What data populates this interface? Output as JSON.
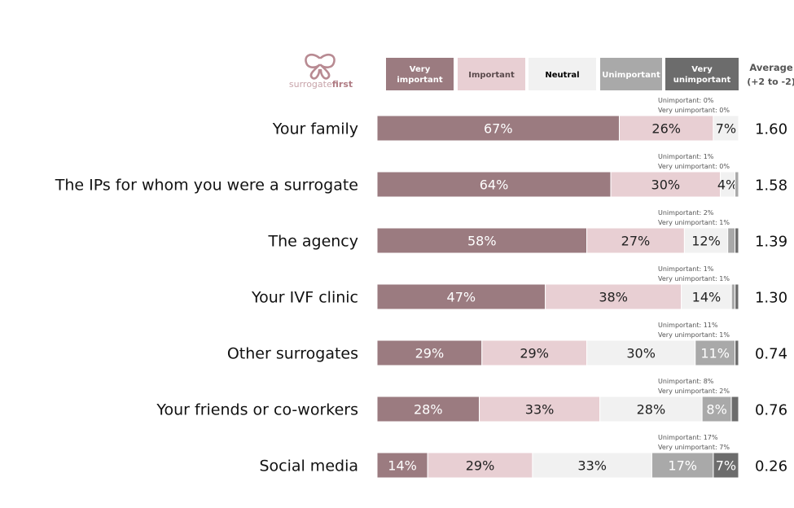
{
  "brand": {
    "name_part1": "surrogate",
    "name_part2": "first",
    "icon": "butterfly-logo-icon"
  },
  "chart_data": {
    "type": "bar",
    "orientation": "horizontal",
    "stacked": true,
    "normalized_100": true,
    "legend": {
      "placement": "top",
      "entries": [
        {
          "line1": "Very",
          "line2": "important",
          "color": "#9b7b80",
          "text_color": "#ffffff"
        },
        {
          "line1": "Important",
          "line2": "",
          "color": "#e8cfd3",
          "text_color": "#5a4a4c"
        },
        {
          "line1": "Neutral",
          "line2": "",
          "color": "#f1f1f1",
          "text_color": "#000000"
        },
        {
          "line1": "Unimportant",
          "line2": "",
          "color": "#a9a9a9",
          "text_color": "#ffffff"
        },
        {
          "line1": "Very",
          "line2": "unimportant",
          "color": "#6c6c6c",
          "text_color": "#ffffff"
        }
      ]
    },
    "average_header": {
      "line1": "Average",
      "line2": "(+2 to -2)"
    },
    "categories": [
      "Your family",
      "The IPs for whom you were a surrogate",
      "The agency",
      "Your IVF clinic",
      "Other surrogates",
      "Your friends or co-workers",
      "Social media"
    ],
    "series": [
      {
        "name": "Very important",
        "values": [
          67,
          64,
          58,
          47,
          29,
          28,
          14
        ]
      },
      {
        "name": "Important",
        "values": [
          26,
          30,
          27,
          38,
          29,
          33,
          29
        ]
      },
      {
        "name": "Neutral",
        "values": [
          7,
          4,
          12,
          14,
          30,
          28,
          33
        ]
      },
      {
        "name": "Unimportant",
        "values": [
          0,
          1,
          2,
          1,
          11,
          8,
          17
        ]
      },
      {
        "name": "Very unimportant",
        "values": [
          0,
          0,
          1,
          1,
          1,
          2,
          7
        ]
      }
    ],
    "segment_labels": [
      [
        "67%",
        "26%",
        "7%",
        "",
        ""
      ],
      [
        "64%",
        "30%",
        "4%",
        "",
        ""
      ],
      [
        "58%",
        "27%",
        "12%",
        "",
        ""
      ],
      [
        "47%",
        "38%",
        "14%",
        "",
        ""
      ],
      [
        "29%",
        "29%",
        "30%",
        "11%",
        ""
      ],
      [
        "28%",
        "33%",
        "28%",
        "8%",
        ""
      ],
      [
        "14%",
        "29%",
        "33%",
        "17%",
        "7%"
      ]
    ],
    "annotations": [
      {
        "unimportant": "Unimportant: 0%",
        "very_unimportant": "Very unimportant: 0%"
      },
      {
        "unimportant": "Unimportant: 1%",
        "very_unimportant": "Very unimportant: 0%"
      },
      {
        "unimportant": "Unimportant: 2%",
        "very_unimportant": "Very unimportant: 1%"
      },
      {
        "unimportant": "Unimportant: 1%",
        "very_unimportant": "Very unimportant: 1%"
      },
      {
        "unimportant": "Unimportant: 11%",
        "very_unimportant": "Very unimportant: 1%"
      },
      {
        "unimportant": "Unimportant: 8%",
        "very_unimportant": "Very unimportant: 2%"
      },
      {
        "unimportant": "Unimportant: 17%",
        "very_unimportant": "Very unimportant: 7%"
      }
    ],
    "averages": [
      "1.60",
      "1.58",
      "1.39",
      "1.30",
      "0.74",
      "0.76",
      "0.26"
    ]
  }
}
